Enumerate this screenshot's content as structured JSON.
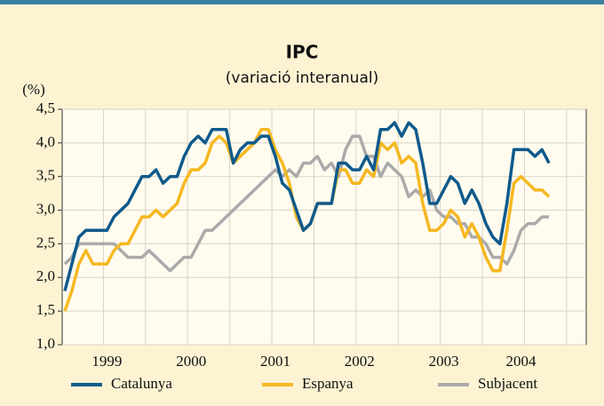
{
  "chart_data": {
    "type": "line",
    "title": "IPC",
    "subtitle": "(variació interanual)",
    "y_label": "(%)",
    "categories": [
      null,
      null,
      null,
      null,
      null,
      null,
      "1999",
      null,
      null,
      null,
      null,
      null,
      null,
      null,
      null,
      null,
      null,
      null,
      "2000",
      null,
      null,
      null,
      null,
      null,
      null,
      null,
      null,
      null,
      null,
      null,
      "2001",
      null,
      null,
      null,
      null,
      null,
      null,
      null,
      null,
      null,
      null,
      null,
      "2002",
      null,
      null,
      null,
      null,
      null,
      null,
      null,
      null,
      null,
      null,
      null,
      "2003",
      null,
      null,
      null,
      null,
      null,
      null,
      null,
      null,
      null,
      null,
      "2004",
      null,
      null,
      null,
      null
    ],
    "series": [
      {
        "name": "Catalunya",
        "color": "#0f5a8c",
        "values": [
          1.8,
          2.2,
          2.6,
          2.7,
          2.7,
          2.7,
          2.7,
          2.9,
          3.0,
          3.1,
          3.3,
          3.5,
          3.5,
          3.6,
          3.4,
          3.5,
          3.5,
          3.8,
          4.0,
          4.1,
          4.0,
          4.2,
          4.2,
          4.2,
          3.7,
          3.9,
          4.0,
          4.0,
          4.1,
          4.1,
          3.8,
          3.4,
          3.3,
          3.0,
          2.7,
          2.8,
          3.1,
          3.1,
          3.1,
          3.7,
          3.7,
          3.6,
          3.6,
          3.8,
          3.6,
          4.2,
          4.2,
          4.3,
          4.1,
          4.3,
          4.2,
          3.7,
          3.1,
          3.1,
          3.3,
          3.5,
          3.4,
          3.1,
          3.3,
          3.1,
          2.8,
          2.6,
          2.5,
          3.1,
          3.9,
          3.9,
          3.9,
          3.8,
          3.9,
          3.7
        ]
      },
      {
        "name": "Espanya",
        "color": "#f5b820",
        "values": [
          1.5,
          1.8,
          2.2,
          2.4,
          2.2,
          2.2,
          2.2,
          2.4,
          2.5,
          2.5,
          2.7,
          2.9,
          2.9,
          3.0,
          2.9,
          3.0,
          3.1,
          3.4,
          3.6,
          3.6,
          3.7,
          4.0,
          4.1,
          4.0,
          3.7,
          3.8,
          3.9,
          4.0,
          4.2,
          4.2,
          3.9,
          3.7,
          3.4,
          2.9,
          2.7,
          2.8,
          3.1,
          3.1,
          3.1,
          3.6,
          3.6,
          3.4,
          3.4,
          3.6,
          3.5,
          4.0,
          3.9,
          4.0,
          3.7,
          3.8,
          3.7,
          3.1,
          2.7,
          2.7,
          2.8,
          3.0,
          2.9,
          2.6,
          2.8,
          2.6,
          2.3,
          2.1,
          2.1,
          2.7,
          3.4,
          3.5,
          3.4,
          3.3,
          3.3,
          3.2
        ]
      },
      {
        "name": "Subjacent",
        "color": "#aaaaaa",
        "values": [
          2.2,
          2.3,
          2.5,
          2.5,
          2.5,
          2.5,
          2.5,
          2.5,
          2.4,
          2.3,
          2.3,
          2.3,
          2.4,
          2.3,
          2.2,
          2.1,
          2.2,
          2.3,
          2.3,
          2.5,
          2.7,
          2.7,
          2.8,
          2.9,
          3.0,
          3.1,
          3.2,
          3.3,
          3.4,
          3.5,
          3.6,
          3.5,
          3.6,
          3.5,
          3.7,
          3.7,
          3.8,
          3.6,
          3.7,
          3.5,
          3.9,
          4.1,
          4.1,
          3.8,
          3.8,
          3.5,
          3.7,
          3.6,
          3.5,
          3.2,
          3.3,
          3.2,
          3.3,
          3.0,
          2.9,
          2.9,
          2.8,
          2.8,
          2.6,
          2.6,
          2.5,
          2.3,
          2.3,
          2.2,
          2.4,
          2.7,
          2.8,
          2.8,
          2.9,
          2.9
        ]
      }
    ],
    "ylim": [
      1,
      4.5
    ],
    "yticks": [
      {
        "value": 1,
        "label": "1,0"
      },
      {
        "value": 1.5,
        "label": "1,5"
      },
      {
        "value": 2,
        "label": "2,0"
      },
      {
        "value": 2.5,
        "label": "2,5"
      },
      {
        "value": 3,
        "label": "3,0"
      },
      {
        "value": 3.5,
        "label": "3,5"
      },
      {
        "value": 4,
        "label": "4,0"
      },
      {
        "value": 4.5,
        "label": "4,5"
      }
    ],
    "grid": true,
    "legend": "bottom"
  }
}
